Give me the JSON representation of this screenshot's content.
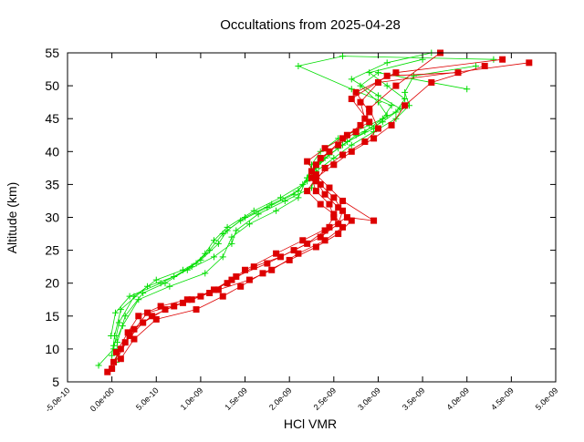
{
  "chart_data": {
    "type": "line",
    "title": "Occultations from 2025-04-28",
    "xlabel": "HCl VMR",
    "ylabel": "Altitude (km)",
    "xlim": [
      -5e-10,
      5e-09
    ],
    "ylim": [
      5,
      55
    ],
    "x_ticks": [
      {
        "value": -5e-10,
        "label": "-5.0e-10"
      },
      {
        "value": 0,
        "label": "0.0e+00"
      },
      {
        "value": 5e-10,
        "label": "5.0e-10"
      },
      {
        "value": 1e-09,
        "label": "1.0e-09"
      },
      {
        "value": 1.5e-09,
        "label": "1.5e-09"
      },
      {
        "value": 2e-09,
        "label": "2.0e-09"
      },
      {
        "value": 2.5e-09,
        "label": "2.5e-09"
      },
      {
        "value": 3e-09,
        "label": "3.0e-09"
      },
      {
        "value": 3.5e-09,
        "label": "3.5e-09"
      },
      {
        "value": 4e-09,
        "label": "4.0e-09"
      },
      {
        "value": 4.5e-09,
        "label": "4.5e-09"
      },
      {
        "value": 5e-09,
        "label": "5.0e-09"
      }
    ],
    "y_ticks": [
      {
        "value": 5,
        "label": "5"
      },
      {
        "value": 10,
        "label": "10"
      },
      {
        "value": 15,
        "label": "15"
      },
      {
        "value": 20,
        "label": "20"
      },
      {
        "value": 25,
        "label": "25"
      },
      {
        "value": 30,
        "label": "30"
      },
      {
        "value": 35,
        "label": "35"
      },
      {
        "value": 40,
        "label": "40"
      },
      {
        "value": 45,
        "label": "45"
      },
      {
        "value": 50,
        "label": "50"
      },
      {
        "value": 55,
        "label": "55"
      }
    ],
    "grid": false,
    "legend": "none",
    "series": [
      {
        "color": "#00dd00",
        "marker": "plus",
        "x": [
          -1.5e-10,
          2e-11,
          8e-11,
          2.5e-10,
          5e-10,
          8e-10,
          1e-09,
          1.2e-09,
          1.3e-09,
          1.5e-09,
          1.8e-09,
          2.1e-09,
          2.2e-09,
          2.25e-09,
          2.35e-09,
          2.55e-09,
          2.9e-09,
          3.2e-09,
          3.3e-09,
          3.1e-09,
          2.9e-09,
          3.5e-09
        ],
        "y": [
          7.5,
          10,
          14,
          18,
          20.5,
          22,
          23.5,
          26,
          28,
          30,
          32,
          34,
          36,
          38,
          40,
          42,
          44,
          46,
          48,
          50,
          52,
          54
        ]
      },
      {
        "color": "#00dd00",
        "marker": "plus",
        "x": [
          0,
          3e-11,
          1e-10,
          4e-10,
          7e-10,
          9.5e-10,
          1.1e-09,
          1.25e-09,
          1.45e-09,
          1.75e-09,
          2.05e-09,
          2.2e-09,
          2.3e-09,
          2.45e-09,
          2.65e-09,
          2.95e-09,
          3.1e-09,
          3e-09,
          2.8e-09,
          3e-09,
          4e-09
        ],
        "y": [
          9,
          12,
          16,
          19.5,
          21,
          23,
          25,
          27.5,
          29.5,
          31.5,
          33.5,
          35.5,
          37.5,
          39.5,
          41.5,
          43.5,
          45.5,
          47.5,
          50,
          52,
          49.5
        ]
      },
      {
        "color": "#00dd00",
        "marker": "plus",
        "x": [
          5e-11,
          6e-11,
          1.5e-10,
          3.5e-10,
          6e-10,
          9e-10,
          1.05e-09,
          1.15e-09,
          1.3e-09,
          1.6e-09,
          1.9e-09,
          2.15e-09,
          2.25e-09,
          2.4e-09,
          2.6e-09,
          2.85e-09,
          3.05e-09,
          3.15e-09,
          2.7e-09,
          2.1e-09,
          2.6e-09,
          4.3e-09
        ],
        "y": [
          8,
          11,
          15,
          18.5,
          20,
          22.5,
          24.5,
          26.5,
          28.5,
          31,
          33,
          35,
          37,
          39,
          41,
          43,
          45,
          47,
          49.5,
          53,
          54.5,
          54
        ]
      },
      {
        "color": "#00dd00",
        "marker": "plus",
        "x": [
          2e-11,
          1.2e-10,
          3e-10,
          6.5e-10,
          1.05e-09,
          1.25e-09,
          1.35e-09,
          1.55e-09,
          1.85e-09,
          2.1e-09,
          2.2e-09,
          2.35e-09,
          2.55e-09,
          2.75e-09,
          3.05e-09,
          3.25e-09,
          3e-09,
          2.7e-09,
          3.1e-09,
          3.6e-09
        ],
        "y": [
          10.5,
          13.5,
          17.5,
          19.5,
          21.5,
          24,
          27,
          29,
          31,
          33,
          36,
          38.5,
          40.5,
          42.5,
          44.5,
          46.5,
          48.5,
          51,
          53.5,
          55
        ]
      },
      {
        "color": "#00dd00",
        "marker": "plus",
        "x": [
          -1e-11,
          4e-11,
          2e-10,
          5.5e-10,
          8.5e-10,
          1.15e-09,
          1.35e-09,
          1.4e-09,
          1.65e-09,
          1.95e-09,
          2.25e-09,
          2.3e-09,
          2.5e-09,
          2.7e-09,
          2.95e-09,
          3.2e-09,
          3.35e-09,
          3.3e-09,
          3.4e-09,
          4.1e-09
        ],
        "y": [
          12,
          15.5,
          18,
          20,
          22,
          24,
          26,
          28,
          30.5,
          32.5,
          34.5,
          37,
          39,
          41,
          43,
          45,
          47,
          49,
          51.5,
          53
        ]
      },
      {
        "color": "#dd0000",
        "marker": "square",
        "x": [
          -5e-11,
          1e-10,
          2.5e-10,
          4.5e-10,
          7e-10,
          1e-09,
          1.3e-09,
          1.6e-09,
          1.9e-09,
          2.2e-09,
          2.4e-09,
          2.5e-09,
          2.45e-09,
          2.3e-09,
          2.25e-09,
          2.3e-09,
          2.45e-09,
          2.6e-09,
          2.8e-09,
          2.9e-09,
          2.75e-09,
          3.2e-09,
          4.4e-09
        ],
        "y": [
          6.5,
          10,
          13,
          15,
          16.5,
          18,
          20,
          22.5,
          24,
          26,
          28,
          30,
          32,
          34,
          36,
          38,
          40,
          42,
          44,
          46,
          49,
          52,
          54
        ]
      },
      {
        "color": "#dd0000",
        "marker": "square",
        "x": [
          2e-11,
          1.5e-10,
          3.5e-10,
          6e-10,
          9e-10,
          1.15e-09,
          1.4e-09,
          1.75e-09,
          2.05e-09,
          2.35e-09,
          2.55e-09,
          2.6e-09,
          2.5e-09,
          2.35e-09,
          2.25e-09,
          2.35e-09,
          2.55e-09,
          2.75e-09,
          2.85e-09,
          2.8e-09,
          3e-09,
          4.7e-09
        ],
        "y": [
          8,
          11,
          14,
          16,
          17.5,
          19,
          21,
          23,
          25,
          27,
          29,
          31,
          33,
          35,
          37,
          39,
          41,
          43,
          45,
          47.5,
          50.5,
          53.5
        ]
      },
      {
        "color": "#dd0000",
        "marker": "square",
        "x": [
          0,
          2e-10,
          4e-10,
          8e-10,
          1.1e-09,
          1.35e-09,
          1.5e-09,
          1.85e-09,
          2.15e-09,
          2.45e-09,
          2.65e-09,
          2.95e-09,
          2.6e-09,
          2.45e-09,
          2.3e-09,
          2.2e-09,
          2.4e-09,
          2.65e-09,
          2.9e-09,
          2.7e-09,
          3.1e-09,
          3.9e-09
        ],
        "y": [
          7,
          12,
          15.5,
          17,
          18.5,
          20.5,
          22,
          24.5,
          26.5,
          28.5,
          30,
          29.5,
          32.5,
          34.5,
          36.5,
          38.5,
          40.5,
          42.5,
          44.5,
          48,
          51.5,
          52
        ]
      },
      {
        "color": "#dd0000",
        "marker": "square",
        "x": [
          1e-10,
          2.5e-10,
          5e-10,
          9.5e-10,
          1.25e-09,
          1.45e-09,
          1.7e-09,
          2e-09,
          2.3e-09,
          2.55e-09,
          2.7e-09,
          2.55e-09,
          2.4e-09,
          2.3e-09,
          2.4e-09,
          2.6e-09,
          2.85e-09,
          3e-09,
          2.9e-09,
          3.2e-09,
          3.7e-09
        ],
        "y": [
          8.5,
          11.5,
          14.5,
          16,
          18,
          19.5,
          21.5,
          23.5,
          25.5,
          27.5,
          29.5,
          31.5,
          33.5,
          35.5,
          37.5,
          39.5,
          41.5,
          43.5,
          46.5,
          50,
          55
        ]
      },
      {
        "color": "#dd0000",
        "marker": "square",
        "x": [
          5e-11,
          1.8e-10,
          3e-10,
          5.5e-10,
          8.5e-10,
          1.2e-09,
          1.55e-09,
          1.8e-09,
          2.1e-09,
          2.4e-09,
          2.6e-09,
          2.5e-09,
          2.35e-09,
          2.2e-09,
          2.3e-09,
          2.5e-09,
          2.7e-09,
          2.95e-09,
          3.15e-09,
          3.3e-09,
          3.6e-09,
          4.2e-09
        ],
        "y": [
          9.5,
          12.5,
          15,
          16.5,
          17.5,
          19,
          20.5,
          22,
          24.5,
          26.5,
          28.5,
          30.5,
          32,
          34,
          36,
          38,
          40,
          42,
          44,
          47,
          50.5,
          53
        ]
      }
    ]
  }
}
